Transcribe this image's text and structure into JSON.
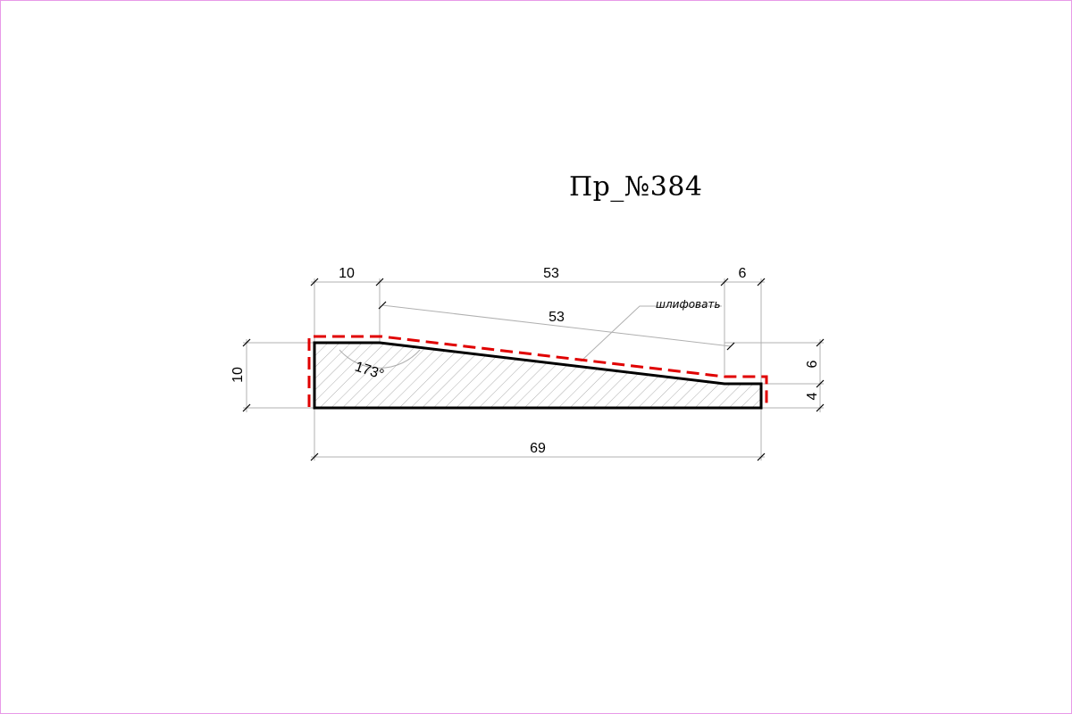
{
  "drawing": {
    "title": "Пр_№384",
    "note": "шлифовать",
    "angle_label": "173°",
    "dimensions": {
      "top_left": "10",
      "top_middle": "53",
      "top_right": "6",
      "slope": "53",
      "left_height": "10",
      "right_upper": "6",
      "right_lower": "4",
      "bottom_total": "69"
    },
    "colors": {
      "outline": "#000000",
      "sanding_line": "#e00000",
      "dimension_line": "#b0b0b0",
      "hatch": "#9a9a9a",
      "frame": "#e89ae8"
    }
  }
}
